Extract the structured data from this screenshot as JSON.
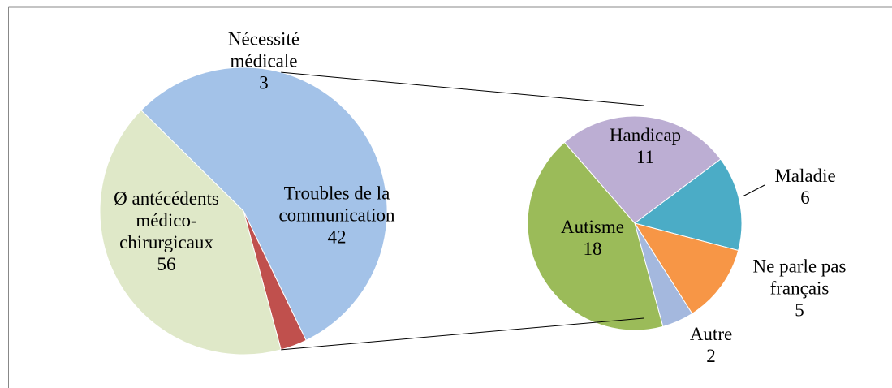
{
  "chart_data": {
    "type": "pie-of-pie",
    "categories": [
      "Ø antécédents médico-chirurgicaux",
      "Nécessité médicale",
      "Troubles de la communication"
    ],
    "values": [
      56,
      3,
      42
    ],
    "colors": [
      "#a3c2e8",
      "#c0504d",
      "#dfe8c8"
    ],
    "secondary": {
      "categories": [
        "Handicap",
        "Maladie",
        "Ne parle pas français",
        "Autre",
        "Autisme"
      ],
      "values": [
        11,
        6,
        5,
        2,
        18
      ],
      "colors": [
        "#bcaed3",
        "#4bacc6",
        "#f79646",
        "#a4b8de",
        "#9bbb59"
      ]
    }
  }
}
